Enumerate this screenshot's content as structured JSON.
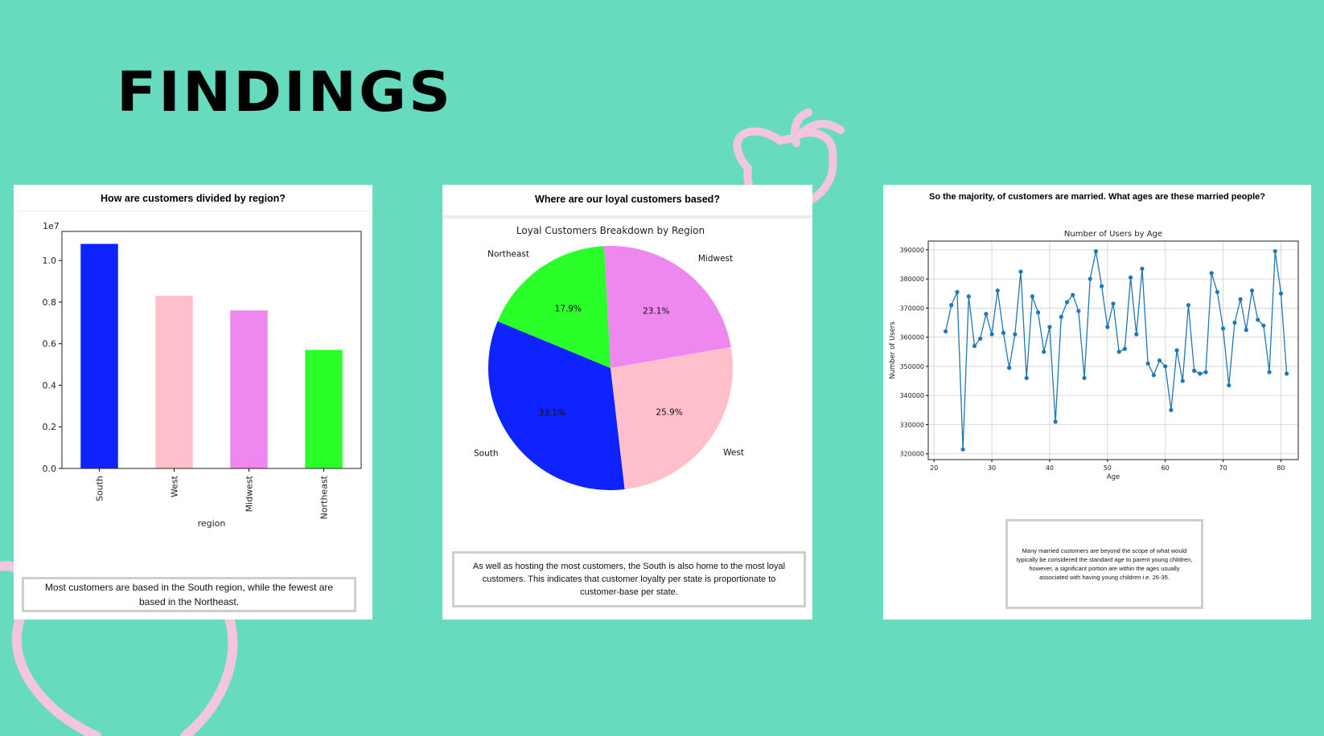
{
  "page": {
    "title": "FINDINGS",
    "colors": {
      "background": "#66dbbe",
      "accent": "#f4c6dc"
    },
    "decorations": [
      "apple-outline-icon"
    ]
  },
  "cards": [
    {
      "question": "How are customers divided by region?",
      "caption": "Most customers are based in the South region, while the fewest are based in the Northeast."
    },
    {
      "question": "Where are our loyal customers based?",
      "caption": "As well as hosting the most customers, the South is also home to the most loyal customers. This indicates that customer loyalty per state is proportionate to customer-base per state."
    },
    {
      "question": "So the majority, of customers are married. What ages are these married people?",
      "caption": "Many married customers are beyond the scope of what would typically be considered the standard age to parent young children, however, a significant portion are within the ages usually associated with having young children i.e. 26-35."
    }
  ],
  "chart_data": [
    {
      "type": "bar",
      "categories": [
        "South",
        "West",
        "Midwest",
        "Northeast"
      ],
      "values": [
        10800000,
        8300000,
        7600000,
        5700000
      ],
      "colors": [
        "#0f23ff",
        "#ffc0cb",
        "#ee88ee",
        "#2aff2a"
      ],
      "xlabel": "region",
      "ylabel": "",
      "offset_label": "1e7",
      "yticks": [
        "0.0",
        "0.2",
        "0.4",
        "0.6",
        "0.8",
        "1.0"
      ],
      "ylim": [
        0,
        11400000
      ]
    },
    {
      "type": "pie",
      "title": "Loyal Customers Breakdown by Region",
      "slices": [
        {
          "label": "South",
          "value": 33.1,
          "pct": "33.1%",
          "color": "#0f23ff"
        },
        {
          "label": "West",
          "value": 25.9,
          "pct": "25.9%",
          "color": "#ffc0cb"
        },
        {
          "label": "Midwest",
          "value": 23.1,
          "pct": "23.1%",
          "color": "#ee88ee"
        },
        {
          "label": "Northeast",
          "value": 17.9,
          "pct": "17.9%",
          "color": "#2aff2a"
        }
      ]
    },
    {
      "type": "line",
      "title": "Number of Users by Age",
      "xlabel": "Age",
      "ylabel": "Number of Users",
      "xlim": [
        19,
        83
      ],
      "ylim": [
        318000,
        393000
      ],
      "xticks": [
        "20",
        "30",
        "40",
        "50",
        "60",
        "70",
        "80"
      ],
      "yticks": [
        "320000",
        "330000",
        "340000",
        "350000",
        "360000",
        "370000",
        "380000",
        "390000"
      ],
      "grid": true,
      "color": "#1f77b4",
      "x": [
        22,
        23,
        24,
        25,
        26,
        27,
        28,
        29,
        30,
        31,
        32,
        33,
        34,
        35,
        36,
        37,
        38,
        39,
        40,
        41,
        42,
        43,
        44,
        45,
        46,
        47,
        48,
        49,
        50,
        51,
        52,
        53,
        54,
        55,
        56,
        57,
        58,
        59,
        60,
        61,
        62,
        63,
        64,
        65,
        66,
        67,
        68,
        69,
        70,
        71,
        72,
        73,
        74,
        75,
        76,
        77,
        78,
        79,
        80,
        81
      ],
      "values": [
        362000,
        371000,
        375500,
        321500,
        374000,
        357000,
        359500,
        368000,
        361000,
        376000,
        361500,
        349500,
        361000,
        382500,
        346000,
        374000,
        368500,
        355000,
        363500,
        331000,
        367000,
        372000,
        374500,
        369000,
        346000,
        380000,
        389500,
        377500,
        363500,
        371500,
        355000,
        356000,
        380500,
        361000,
        383500,
        351000,
        347000,
        352000,
        350000,
        335000,
        355500,
        345000,
        371000,
        348500,
        347500,
        348000,
        382000,
        375500,
        363000,
        343500,
        365000,
        373000,
        362500,
        376000,
        366000,
        364000,
        348000,
        389500,
        375000,
        347500
      ]
    }
  ]
}
